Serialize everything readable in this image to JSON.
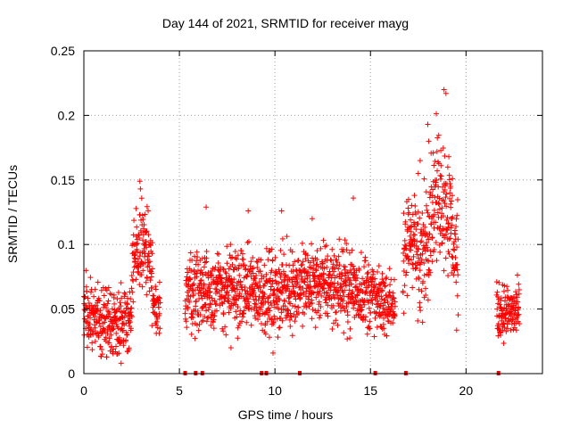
{
  "chart_data": {
    "type": "scatter",
    "title": "Day 144 of 2021, SRMTID for receiver mayg",
    "xlabel": "GPS time / hours",
    "ylabel": "SRMTID / TECUs",
    "xlim": [
      0,
      24
    ],
    "ylim": [
      0,
      0.25
    ],
    "grid": true,
    "xticks": [
      0,
      5,
      10,
      15,
      20
    ],
    "yticks": [
      0,
      0.05,
      0.1,
      0.15,
      0.2,
      0.25
    ],
    "xtick_labels": [
      "0",
      "5",
      "10",
      "15",
      "20"
    ],
    "ytick_labels": [
      "0",
      "0.05",
      "0.1",
      "0.15",
      "0.2",
      "0.25"
    ],
    "marker": "plus",
    "color": "#ff0000",
    "segments": [
      {
        "x_start": 0.0,
        "x_end": 2.5,
        "base": 0.045,
        "spread": 0.04,
        "trend": -0.005
      },
      {
        "x_start": 2.5,
        "x_end": 3.6,
        "base": 0.07,
        "spread": 0.05,
        "trend": 0.03
      },
      {
        "x_start": 3.6,
        "x_end": 4.0,
        "base": 0.055,
        "spread": 0.03,
        "trend": -0.01
      },
      {
        "x_start": 5.3,
        "x_end": 9.5,
        "base": 0.065,
        "spread": 0.045,
        "trend": 0.0
      },
      {
        "x_start": 9.5,
        "x_end": 15.2,
        "base": 0.06,
        "spread": 0.045,
        "trend": 0.01
      },
      {
        "x_start": 15.2,
        "x_end": 16.3,
        "base": 0.055,
        "spread": 0.035,
        "trend": 0.0
      },
      {
        "x_start": 16.7,
        "x_end": 17.6,
        "base": 0.07,
        "spread": 0.06,
        "trend": 0.04
      },
      {
        "x_start": 17.6,
        "x_end": 19.6,
        "base": 0.08,
        "spread": 0.07,
        "trend": 0.06
      },
      {
        "x_start": 21.6,
        "x_end": 22.8,
        "base": 0.048,
        "spread": 0.03,
        "trend": 0.0
      }
    ],
    "peaks": [
      {
        "x": 2.93,
        "y": 0.149
      },
      {
        "x": 2.96,
        "y": 0.143
      },
      {
        "x": 6.4,
        "y": 0.129
      },
      {
        "x": 8.6,
        "y": 0.126
      },
      {
        "x": 10.35,
        "y": 0.126
      },
      {
        "x": 11.95,
        "y": 0.12
      },
      {
        "x": 14.1,
        "y": 0.136
      },
      {
        "x": 17.3,
        "y": 0.138
      },
      {
        "x": 17.5,
        "y": 0.155
      },
      {
        "x": 17.6,
        "y": 0.165
      },
      {
        "x": 18.0,
        "y": 0.193
      },
      {
        "x": 18.05,
        "y": 0.18
      },
      {
        "x": 18.85,
        "y": 0.22
      },
      {
        "x": 18.95,
        "y": 0.217
      },
      {
        "x": 19.1,
        "y": 0.168
      },
      {
        "x": 19.2,
        "y": 0.145
      },
      {
        "x": 1.95,
        "y": 0.008
      },
      {
        "x": 9.9,
        "y": 0.016
      },
      {
        "x": 7.7,
        "y": 0.02
      }
    ],
    "zero_marks_x": [
      5.3,
      5.85,
      6.2,
      9.3,
      9.55,
      11.3,
      15.25,
      16.85,
      21.7
    ]
  }
}
